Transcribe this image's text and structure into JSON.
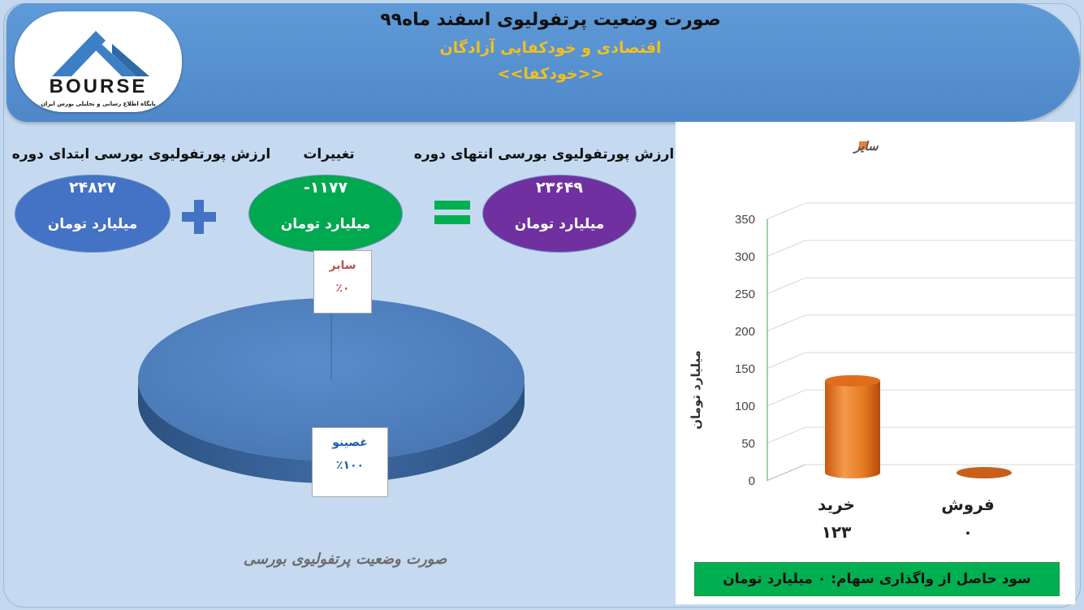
{
  "header": {
    "title": "صورت وضعیت پرتفولیوی اسفند ماه۹۹",
    "company": "اقتصادی و خودکفایی آزادگان",
    "ticker": "<<خودکفا>>"
  },
  "logo": {
    "brand": "BOURSE",
    "tagline": "پایگاه اطلاع رسانی و تحلیلی بورس ایران",
    "colors": {
      "mark": "#3d7fc4",
      "text": "#1a1a1a"
    }
  },
  "summary": {
    "start_label": "ارزش پورتفولیوی بورسی ابتدای دوره",
    "change_label": "تغییرات",
    "end_label": "ارزش پورتفولیوی بورسی انتهای دوره",
    "start_value": "۲۴۸۲۷",
    "change_value": "-۱۱۷۷",
    "end_value": "۲۳۶۴۹",
    "unit": "میلیارد تومان",
    "plus_icon": "plus-icon",
    "equals_icon": "equals-icon",
    "colors": {
      "start": "#4472c4",
      "change": "#00a84f",
      "end": "#7030a0",
      "operator": "#4472c4",
      "equals": "#00b050"
    }
  },
  "pie": {
    "title": "صورت وضعیت پرتفولیوی بورسی",
    "chart_data": {
      "type": "pie",
      "slices": [
        {
          "label": "غصینو",
          "percent_text": "٪۱۰۰",
          "value": 100,
          "color": "#4f81bd"
        },
        {
          "label": "سایر",
          "percent_text": "٪۰",
          "value": 0,
          "color": "#c0504d"
        }
      ]
    }
  },
  "bar": {
    "chart_data": {
      "type": "bar",
      "legend": "سایر",
      "legend_color": "#ed7d31",
      "legend_position": "top-right",
      "categories": [
        "خرید",
        "فروش"
      ],
      "values": [
        123,
        0
      ],
      "value_labels": [
        "۱۲۳",
        "۰"
      ],
      "ylabel": "میلیارد تومان",
      "ylim": [
        0,
        350
      ],
      "yticks": [
        0,
        50,
        100,
        150,
        200,
        250,
        300,
        350
      ],
      "grid": true
    }
  },
  "profit": {
    "label": "سود حاصل از واگذاری سهام:",
    "value": "۰",
    "unit": "میلیارد تومان"
  }
}
